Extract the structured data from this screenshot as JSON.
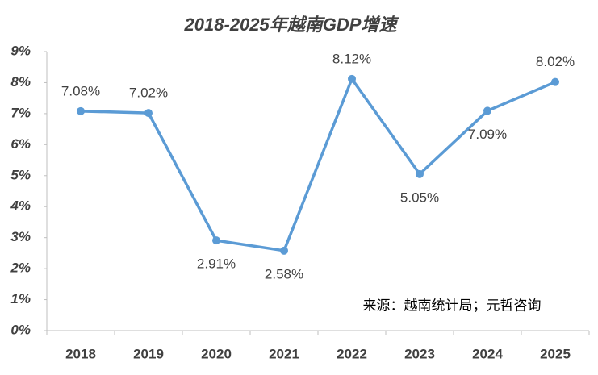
{
  "chart_data": {
    "type": "line",
    "title": "2018-2025年越南GDP增速",
    "categories": [
      "2018",
      "2019",
      "2020",
      "2021",
      "2022",
      "2023",
      "2024",
      "2025"
    ],
    "series": [
      {
        "name": "GDP增速",
        "color": "#5b9bd5",
        "values": [
          7.08,
          7.02,
          2.91,
          2.58,
          8.12,
          5.05,
          7.09,
          8.02
        ],
        "value_labels": [
          "7.08%",
          "7.02%",
          "2.91%",
          "2.58%",
          "8.12%",
          "5.05%",
          "7.09%",
          "8.02%"
        ]
      }
    ],
    "ylim": [
      0,
      9
    ],
    "yticks": [
      {
        "value": 0,
        "label": "0%"
      },
      {
        "value": 1,
        "label": "1%"
      },
      {
        "value": 2,
        "label": "2%"
      },
      {
        "value": 3,
        "label": "3%"
      },
      {
        "value": 4,
        "label": "4%"
      },
      {
        "value": 5,
        "label": "5%"
      },
      {
        "value": 6,
        "label": "6%"
      },
      {
        "value": 7,
        "label": "7%"
      },
      {
        "value": 8,
        "label": "8%"
      },
      {
        "value": 9,
        "label": "9%"
      }
    ],
    "annotation": "来源：越南统计局；元哲咨询",
    "grid": false
  }
}
